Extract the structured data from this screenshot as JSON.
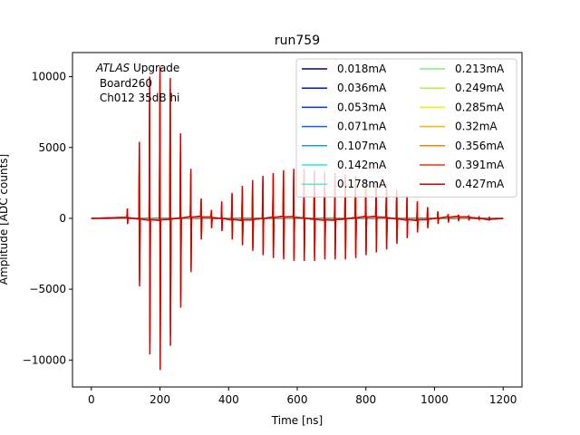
{
  "chart_data": {
    "type": "line",
    "title": "run759",
    "xlabel": "Time [ns]",
    "ylabel": "Amplitude [ADC counts]",
    "xlim": [
      -55,
      1255
    ],
    "ylim": [
      -11900,
      11700
    ],
    "xticks": [
      0,
      200,
      400,
      600,
      800,
      1000,
      1200
    ],
    "yticks": [
      -10000,
      -5000,
      0,
      5000,
      10000
    ],
    "xtick_labels": [
      "0",
      "200",
      "400",
      "600",
      "800",
      "1000",
      "1200"
    ],
    "ytick_labels": [
      "−10000",
      "−5000",
      "0",
      "5000",
      "10000"
    ],
    "annotation": {
      "italic": "ATLAS",
      "rest": " Upgrade",
      "line2": " Board260",
      "line3": " Ch012 35dB hi"
    },
    "legend_position": "upper right",
    "legend_columns": 2,
    "series": [
      {
        "name": "0.018mA",
        "color": "#00008b",
        "scale": 0.04
      },
      {
        "name": "0.036mA",
        "color": "#0010c8",
        "scale": 0.08
      },
      {
        "name": "0.053mA",
        "color": "#0030e8",
        "scale": 0.12
      },
      {
        "name": "0.071mA",
        "color": "#1060f0",
        "scale": 0.17
      },
      {
        "name": "0.107mA",
        "color": "#10a0e0",
        "scale": 0.25
      },
      {
        "name": "0.142mA",
        "color": "#20e8e8",
        "scale": 0.33
      },
      {
        "name": "0.178mA",
        "color": "#60e8c0",
        "scale": 0.42
      },
      {
        "name": "0.213mA",
        "color": "#80f080",
        "scale": 0.5
      },
      {
        "name": "0.249mA",
        "color": "#b0f040",
        "scale": 0.58
      },
      {
        "name": "0.285mA",
        "color": "#f0f000",
        "scale": 0.67
      },
      {
        "name": "0.32mA",
        "color": "#ffb000",
        "scale": 0.75
      },
      {
        "name": "0.356mA",
        "color": "#ff8000",
        "scale": 0.83
      },
      {
        "name": "0.391mA",
        "color": "#ff3000",
        "scale": 0.92
      },
      {
        "name": "0.427mA",
        "color": "#d00000",
        "scale": 1.0
      }
    ],
    "spikes_top_series": [
      {
        "t": 105,
        "pos": 700,
        "neg": -400
      },
      {
        "t": 140,
        "pos": 5400,
        "neg": -4800
      },
      {
        "t": 170,
        "pos": 10000,
        "neg": -9600
      },
      {
        "t": 200,
        "pos": 10700,
        "neg": -10700
      },
      {
        "t": 230,
        "pos": 9900,
        "neg": -9000
      },
      {
        "t": 260,
        "pos": 6000,
        "neg": -6300
      },
      {
        "t": 290,
        "pos": 3500,
        "neg": -3800
      },
      {
        "t": 320,
        "pos": 1400,
        "neg": -1500
      },
      {
        "t": 350,
        "pos": 600,
        "neg": -700
      },
      {
        "t": 380,
        "pos": 1200,
        "neg": -900
      },
      {
        "t": 410,
        "pos": 1800,
        "neg": -1500
      },
      {
        "t": 440,
        "pos": 2300,
        "neg": -1900
      },
      {
        "t": 470,
        "pos": 2700,
        "neg": -2300
      },
      {
        "t": 500,
        "pos": 3000,
        "neg": -2600
      },
      {
        "t": 530,
        "pos": 3200,
        "neg": -2800
      },
      {
        "t": 560,
        "pos": 3400,
        "neg": -2900
      },
      {
        "t": 590,
        "pos": 3500,
        "neg": -3000
      },
      {
        "t": 620,
        "pos": 3500,
        "neg": -3000
      },
      {
        "t": 650,
        "pos": 3400,
        "neg": -3000
      },
      {
        "t": 680,
        "pos": 3300,
        "neg": -2900
      },
      {
        "t": 710,
        "pos": 3200,
        "neg": -2900
      },
      {
        "t": 740,
        "pos": 3100,
        "neg": -2900
      },
      {
        "t": 770,
        "pos": 3000,
        "neg": -2800
      },
      {
        "t": 800,
        "pos": 2800,
        "neg": -2600
      },
      {
        "t": 830,
        "pos": 2600,
        "neg": -2400
      },
      {
        "t": 860,
        "pos": 2400,
        "neg": -2200
      },
      {
        "t": 890,
        "pos": 2000,
        "neg": -1800
      },
      {
        "t": 920,
        "pos": 1600,
        "neg": -1400
      },
      {
        "t": 950,
        "pos": 1200,
        "neg": -1000
      },
      {
        "t": 980,
        "pos": 800,
        "neg": -700
      },
      {
        "t": 1010,
        "pos": 500,
        "neg": -400
      },
      {
        "t": 1040,
        "pos": 300,
        "neg": -300
      },
      {
        "t": 1070,
        "pos": 250,
        "neg": -200
      },
      {
        "t": 1100,
        "pos": 200,
        "neg": -150
      },
      {
        "t": 1130,
        "pos": 150,
        "neg": -100
      },
      {
        "t": 1160,
        "pos": 100,
        "neg": -100
      }
    ],
    "time_range": [
      0,
      1200
    ]
  }
}
